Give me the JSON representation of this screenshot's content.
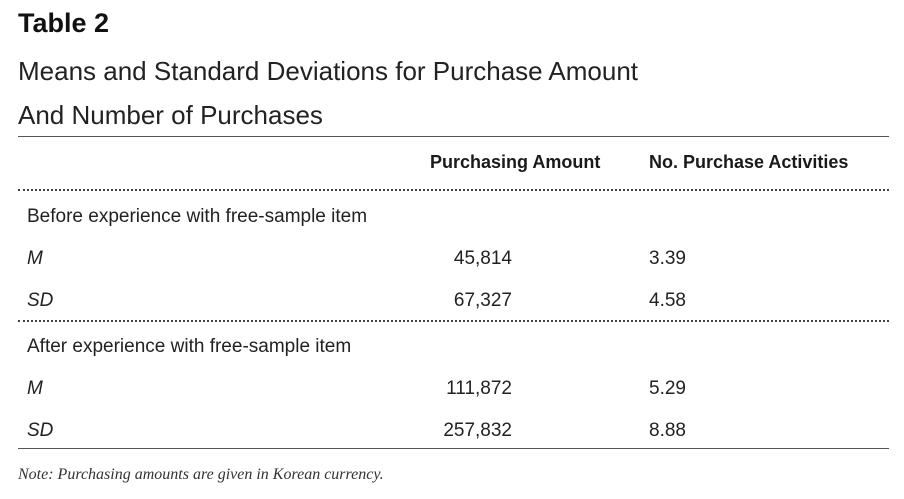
{
  "table": {
    "title": "Table 2",
    "subtitle_line1": "Means and Standard Deviations for Purchase Amount",
    "subtitle_line2": "And Number of Purchases",
    "columns": [
      "",
      "Purchasing Amount",
      "No. Purchase Activities"
    ],
    "groups": [
      {
        "label": "Before experience with free-sample item",
        "rows": [
          {
            "stat": "M",
            "amount": "45,814",
            "activities": "3.39"
          },
          {
            "stat": "SD",
            "amount": "67,327",
            "activities": "4.58"
          }
        ]
      },
      {
        "label": "After experience with free-sample item",
        "rows": [
          {
            "stat": "M",
            "amount": "111,872",
            "activities": "5.29"
          },
          {
            "stat": "SD",
            "amount": "257,832",
            "activities": "8.88"
          }
        ]
      }
    ],
    "note": "Note: Purchasing amounts are given in Korean currency."
  }
}
